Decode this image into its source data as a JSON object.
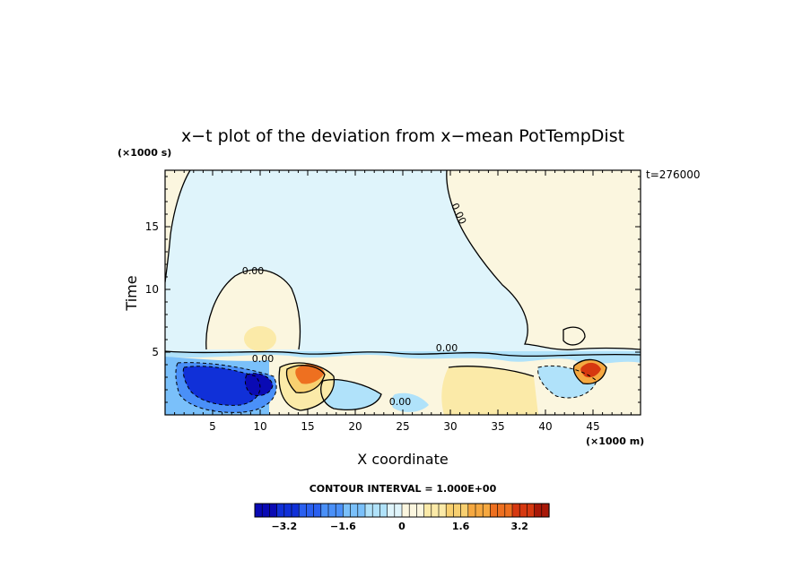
{
  "chart_data": {
    "type": "heatmap",
    "title": "x−t plot of the deviation from x−mean PotTempDist",
    "xlabel": "X coordinate",
    "ylabel": "Time",
    "x_unit_label": "(×1000 m)",
    "y_unit_label": "(×1000 s)",
    "time_label": "t=276000",
    "xlim": [
      0,
      50
    ],
    "ylim": [
      0,
      19.5
    ],
    "x_ticks": [
      "5",
      "10",
      "15",
      "20",
      "25",
      "30",
      "35",
      "40",
      "45"
    ],
    "x_tick_values": [
      5,
      10,
      15,
      20,
      25,
      30,
      35,
      40,
      45
    ],
    "y_ticks": [
      "5",
      "10",
      "15"
    ],
    "y_tick_values": [
      5,
      10,
      15
    ],
    "contour_interval_label": "CONTOUR INTERVAL = 1.000E+00",
    "contour_labels": [
      "0.00",
      "0.00",
      "0.00",
      "0.00",
      "0.00"
    ],
    "colorbar": {
      "range": [
        -4.0,
        4.0
      ],
      "step": 0.2,
      "tick_labels": [
        "−3.2",
        "−1.6",
        "0",
        "1.6",
        "3.2"
      ],
      "tick_values": [
        -3.2,
        -1.6,
        0,
        1.6,
        3.2
      ],
      "colors": [
        "#0a0ab4",
        "#1030d8",
        "#2a60f0",
        "#4a90f8",
        "#7ac0fa",
        "#b0e2fa",
        "#dff4fb",
        "#fbf6df",
        "#fbeaa8",
        "#f8d070",
        "#f5a840",
        "#ee7020",
        "#d63810",
        "#a81808"
      ]
    },
    "regions": [
      {
        "name": "upper-left-positive",
        "value": 0.1
      },
      {
        "name": "upper-right-positive",
        "value": 0.1
      },
      {
        "name": "upper-negative",
        "value": -0.1
      },
      {
        "name": "lower-negative-core",
        "value": -3.0
      },
      {
        "name": "positive-peak-x14",
        "value": 2.6
      },
      {
        "name": "positive-peak-x45",
        "value": 3.0
      }
    ]
  }
}
